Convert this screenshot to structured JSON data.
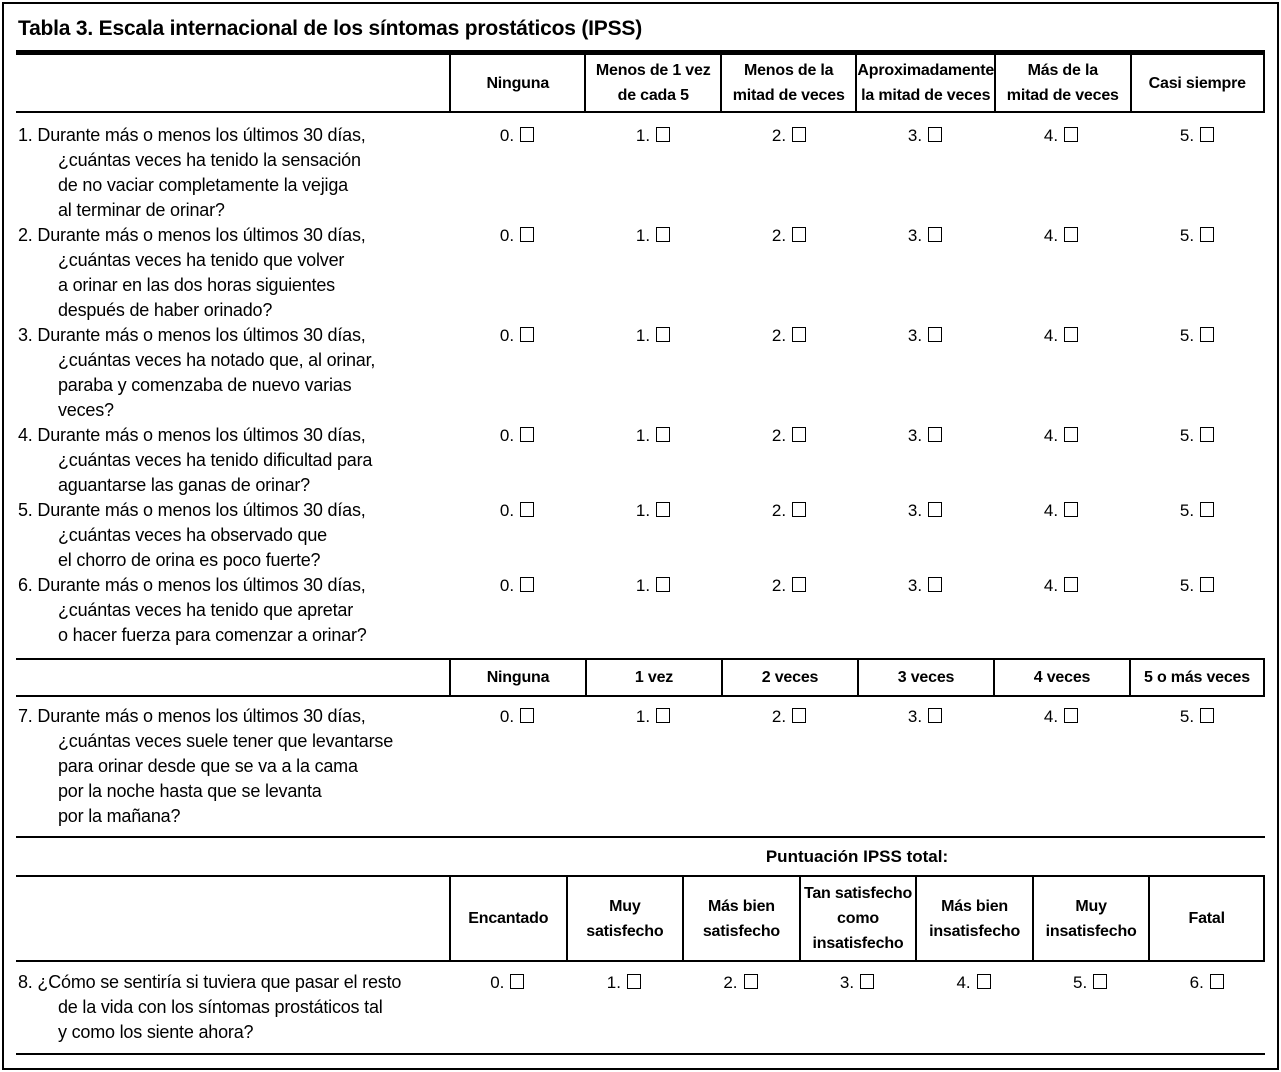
{
  "title": "Tabla 3. Escala internacional de los síntomas prostáticos (IPSS)",
  "colors": {
    "ink": "#000000",
    "paper": "#ffffff"
  },
  "frequency_header": [
    {
      "lines": [
        "Ninguna"
      ]
    },
    {
      "lines": [
        "Menos de 1 vez",
        "de cada 5"
      ]
    },
    {
      "lines": [
        "Menos de la",
        "mitad de veces"
      ]
    },
    {
      "lines": [
        "Aproximadamente",
        "la mitad de veces"
      ]
    },
    {
      "lines": [
        "Más de la",
        "mitad de veces"
      ]
    },
    {
      "lines": [
        "Casi siempre"
      ]
    }
  ],
  "nocturia_header": [
    {
      "lines": [
        "Ninguna"
      ]
    },
    {
      "lines": [
        "1 vez"
      ]
    },
    {
      "lines": [
        "2 veces"
      ]
    },
    {
      "lines": [
        "3 veces"
      ]
    },
    {
      "lines": [
        "4 veces"
      ]
    },
    {
      "lines": [
        "5 o más veces"
      ]
    }
  ],
  "total_label": "Puntuación IPSS total:",
  "qol_header": [
    {
      "lines": [
        "Encantado"
      ]
    },
    {
      "lines": [
        "Muy",
        "satisfecho"
      ]
    },
    {
      "lines": [
        "Más bien",
        "satisfecho"
      ]
    },
    {
      "lines": [
        "Tan satisfecho",
        "como",
        "insatisfecho"
      ]
    },
    {
      "lines": [
        "Más bien",
        "insatisfecho"
      ]
    },
    {
      "lines": [
        "Muy",
        "insatisfecho"
      ]
    },
    {
      "lines": [
        "Fatal"
      ]
    }
  ],
  "questions": [
    {
      "lines": [
        "1. Durante más o menos los últimos 30 días,",
        "¿cuántas veces ha tenido la sensación",
        "de no vaciar completamente la vejiga",
        "al terminar de orinar?"
      ],
      "options": [
        "0.",
        "1.",
        "2.",
        "3.",
        "4.",
        "5."
      ]
    },
    {
      "lines": [
        "2. Durante más o menos los últimos 30 días,",
        "¿cuántas veces ha tenido que volver",
        "a orinar en las dos horas siguientes",
        "después de haber orinado?"
      ],
      "options": [
        "0.",
        "1.",
        "2.",
        "3.",
        "4.",
        "5."
      ]
    },
    {
      "lines": [
        "3. Durante más o menos los últimos 30 días,",
        "¿cuántas veces ha notado que, al orinar,",
        "paraba y comenzaba de nuevo varias",
        "veces?"
      ],
      "options": [
        "0.",
        "1.",
        "2.",
        "3.",
        "4.",
        "5."
      ]
    },
    {
      "lines": [
        "4. Durante más o menos los últimos 30 días,",
        "¿cuántas veces ha tenido dificultad para",
        "aguantarse las ganas de orinar?"
      ],
      "options": [
        "0.",
        "1.",
        "2.",
        "3.",
        "4.",
        "5."
      ]
    },
    {
      "lines": [
        "5. Durante más o menos los últimos 30 días,",
        "¿cuántas veces ha observado que",
        "el chorro de orina es poco fuerte?"
      ],
      "options": [
        "0.",
        "1.",
        "2.",
        "3.",
        "4.",
        "5."
      ]
    },
    {
      "lines": [
        "6. Durante más o menos los últimos 30 días,",
        "¿cuántas veces ha tenido que apretar",
        "o hacer fuerza para comenzar a orinar?"
      ],
      "options": [
        "0.",
        "1.",
        "2.",
        "3.",
        "4.",
        "5."
      ]
    },
    {
      "lines": [
        "7. Durante más o menos los últimos 30 días,",
        "¿cuántas veces suele tener que levantarse",
        "para orinar desde que se va a la cama",
        "por la noche hasta que se levanta",
        "por la mañana?"
      ],
      "options": [
        "0.",
        "1.",
        "2.",
        "3.",
        "4.",
        "5."
      ]
    },
    {
      "lines": [
        "8. ¿Cómo se sentiría si tuviera que pasar el resto",
        "de la vida con los síntomas prostáticos tal",
        "y como los siente ahora?"
      ],
      "options": [
        "0.",
        "1.",
        "2.",
        "3.",
        "4.",
        "5.",
        "6."
      ]
    }
  ]
}
